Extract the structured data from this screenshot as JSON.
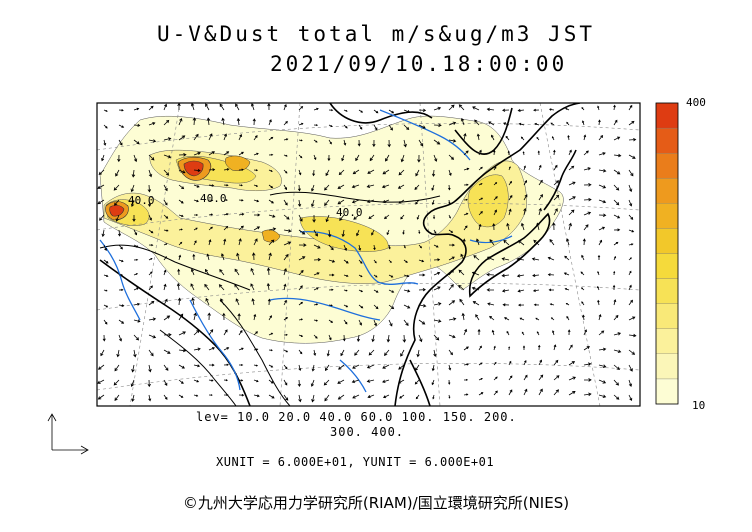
{
  "header": {
    "title": "U-V&Dust total m/s&ug/m3 JST",
    "datetime": "2021/09/10.18:00:00"
  },
  "legend": {
    "levels_line1": "lev= 10.0 20.0 40.0 60.0 100. 150. 200.",
    "levels_line2": "300. 400.",
    "colorbar_max": "400",
    "colorbar_min": "10",
    "colors": [
      "#fdfdd4",
      "#fbf6b8",
      "#fbf19b",
      "#f9e978",
      "#f7e256",
      "#f5da3b",
      "#f2c82a",
      "#f0b122",
      "#ee9a1e",
      "#ea7d1b",
      "#e55c17",
      "#de3c12"
    ]
  },
  "footer": {
    "units": "XUNIT = 6.000E+01, YUNIT = 6.000E+01",
    "credit": "©九州大学応用力学研究所(RIAM)/国立環境研究所(NIES)"
  },
  "map": {
    "contour_labels": [
      "40.0",
      "40.0",
      "40.0"
    ],
    "colors": {
      "coast": "#000000",
      "rivers": "#1e6fdc",
      "grid": "#888888",
      "frame": "#000000"
    }
  }
}
